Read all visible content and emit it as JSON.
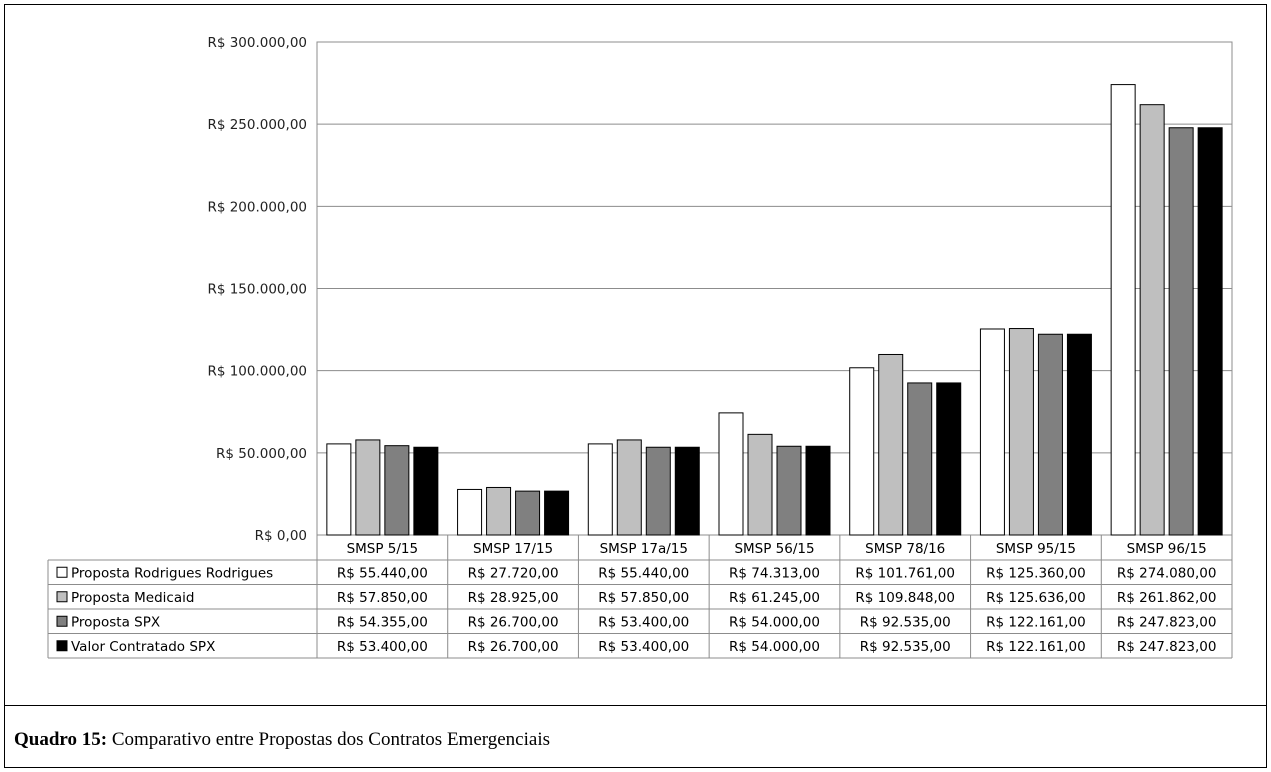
{
  "caption": {
    "label": "Quadro 15:",
    "text": " Comparativo entre Propostas dos Contratos Emergenciais"
  },
  "chart_data": {
    "type": "bar",
    "categories": [
      "SMSP 5/15",
      "SMSP 17/15",
      "SMSP 17a/15",
      "SMSP 56/15",
      "SMSP 78/16",
      "SMSP 95/15",
      "SMSP 96/15"
    ],
    "ylim": [
      0,
      300000
    ],
    "yticks": [
      0,
      50000,
      100000,
      150000,
      200000,
      250000,
      300000
    ],
    "ytick_labels": [
      "R$ 0,00",
      "R$ 50.000,00",
      "R$ 100.000,00",
      "R$ 150.000,00",
      "R$ 200.000,00",
      "R$ 250.000,00",
      "R$ 300.000,00"
    ],
    "grid": true,
    "legend_placement": "data-table",
    "series": [
      {
        "name": "Proposta Rodrigues Rodrigues",
        "color": "#ffffff",
        "values": [
          55440,
          27720,
          55440,
          74313,
          101761,
          125360,
          274080
        ],
        "labels": [
          "R$ 55.440,00",
          "R$ 27.720,00",
          "R$ 55.440,00",
          "R$ 74.313,00",
          "R$ 101.761,00",
          "R$ 125.360,00",
          "R$ 274.080,00"
        ]
      },
      {
        "name": "Proposta Medicaid",
        "color": "#bfbfbf",
        "values": [
          57850,
          28925,
          57850,
          61245,
          109848,
          125636,
          261862
        ],
        "labels": [
          "R$ 57.850,00",
          "R$ 28.925,00",
          "R$ 57.850,00",
          "R$ 61.245,00",
          "R$ 109.848,00",
          "R$ 125.636,00",
          "R$ 261.862,00"
        ]
      },
      {
        "name": "Proposta SPX",
        "color": "#808080",
        "values": [
          54355,
          26700,
          53400,
          54000,
          92535,
          122161,
          247823
        ],
        "labels": [
          "R$ 54.355,00",
          "R$ 26.700,00",
          "R$ 53.400,00",
          "R$ 54.000,00",
          "R$ 92.535,00",
          "R$ 122.161,00",
          "R$ 247.823,00"
        ]
      },
      {
        "name": "Valor Contratado SPX",
        "color": "#000000",
        "values": [
          53400,
          26700,
          53400,
          54000,
          92535,
          122161,
          247823
        ],
        "labels": [
          "R$ 53.400,00",
          "R$ 26.700,00",
          "R$ 53.400,00",
          "R$ 54.000,00",
          "R$ 92.535,00",
          "R$ 122.161,00",
          "R$ 247.823,00"
        ]
      }
    ]
  }
}
